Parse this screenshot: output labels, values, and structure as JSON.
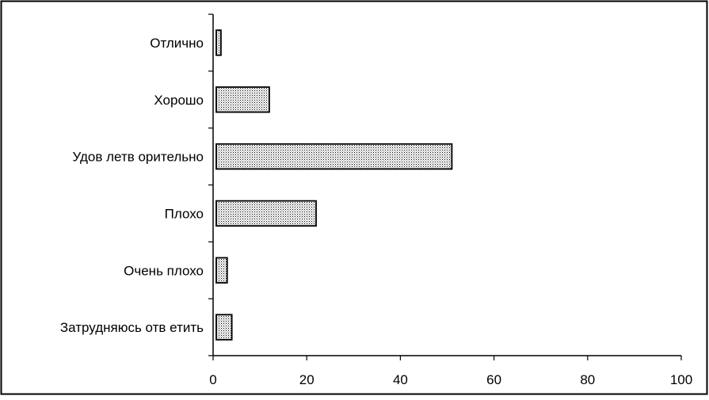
{
  "chart_data": {
    "type": "bar",
    "orientation": "horizontal",
    "categories": [
      "Отлично",
      "Хорошо",
      "Удовлетворительно",
      "Плохо",
      "Очень плохо",
      "Затрудняюсь ответить"
    ],
    "category_labels_display": [
      "Отлично",
      "Хорошо",
      "Удов летв орительно",
      "Плохо",
      "Очень плохо",
      "Затрудняюсь отв етить"
    ],
    "values": [
      1,
      12,
      51,
      22,
      3,
      4
    ],
    "xlim": [
      0,
      100
    ],
    "x_ticks": [
      0,
      20,
      40,
      60,
      80,
      100
    ],
    "title": "",
    "xlabel": "",
    "ylabel": "",
    "grid": false,
    "legend": false,
    "bar_fill": "dotted-gray",
    "bar_stroke_color": "#000000",
    "border_color": "#000000"
  }
}
